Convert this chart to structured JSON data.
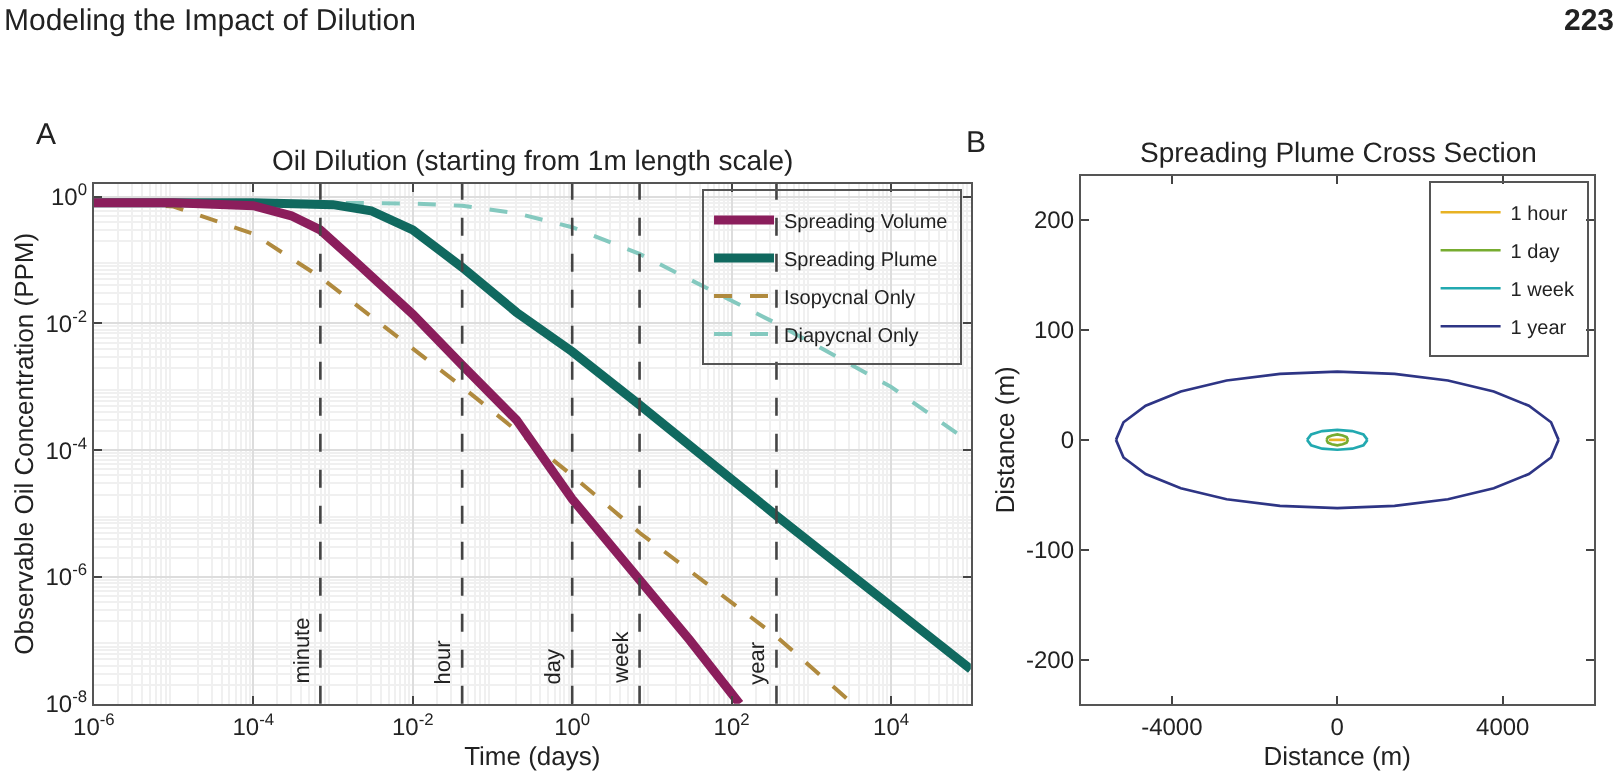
{
  "chart_data": [
    {
      "type": "line",
      "title": "Oil Dilution (starting from 1m length scale)",
      "xlabel": "Time (days)",
      "ylabel": "Observable Oil Concentration (PPM)",
      "annotations": [
        "Modeling the Impact of Dilution",
        "223",
        "A"
      ],
      "log": "xy",
      "grid": true,
      "legend": "top right",
      "xlim": [
        1e-06,
        100000.0
      ],
      "ylim": [
        1e-08,
        1.6
      ],
      "xticks": [
        {
          "value": 1e-06,
          "label": "10$^{-6}$"
        },
        {
          "value": 0.0001,
          "label": "10$^{-4}$"
        },
        {
          "value": 0.01,
          "label": "10$^{-2}$"
        },
        {
          "value": 1,
          "label": "10$^{0}$"
        },
        {
          "value": 100,
          "label": "10$^{2}$"
        },
        {
          "value": 10000.0,
          "label": "10$^{4}$"
        }
      ],
      "yticks": [
        {
          "value": 1e-08,
          "label": "10$^{-8}$"
        },
        {
          "value": 1e-06,
          "label": "10$^{-6}$"
        },
        {
          "value": 0.0001,
          "label": "10$^{-4}$"
        },
        {
          "value": 0.01,
          "label": "10$^{-2}$"
        },
        {
          "value": 1,
          "label": "10$^{0}$"
        }
      ],
      "series": [
        {
          "name": "Spreading Volume",
          "color": "#8b1e5c",
          "line_style": "solid",
          "x": [
            1e-06,
            1e-05,
            0.0001,
            0.0003,
            0.00069,
            0.002,
            0.01,
            0.0417,
            0.2,
            1,
            7,
            30,
            126
          ],
          "values": [
            0.8,
            0.8,
            0.72,
            0.5,
            0.3,
            0.09,
            0.014,
            0.0022,
            0.0003,
            1.7e-05,
            9e-07,
            1e-07,
            1e-08
          ]
        },
        {
          "name": "Spreading Plume",
          "color": "#10695f",
          "line_style": "solid",
          "x": [
            1e-06,
            0.0001,
            0.001,
            0.003,
            0.01,
            0.0417,
            0.2,
            1,
            7,
            365,
            100000.0
          ],
          "values": [
            0.8,
            0.8,
            0.75,
            0.6,
            0.3,
            0.077,
            0.015,
            0.0036,
            0.00052,
            9.3e-06,
            3.5e-08
          ]
        },
        {
          "name": "Isopycnal Only",
          "color": "#b08a3e",
          "line_style": "dashed",
          "x": [
            1e-06,
            3e-06,
            1e-05,
            0.0001,
            0.00069,
            0.0417,
            1,
            7,
            365,
            3300
          ],
          "values": [
            0.8,
            0.78,
            0.7,
            0.26,
            0.054,
            0.001,
            4e-05,
            5e-06,
            1.15e-07,
            1e-08
          ]
        },
        {
          "name": "Diapycnal Only",
          "color": "#84c9bf",
          "line_style": "dashed",
          "x": [
            1e-06,
            0.001,
            0.01,
            0.0417,
            0.2,
            1,
            7,
            365,
            10000.0,
            100000.0
          ],
          "values": [
            0.8,
            0.8,
            0.78,
            0.72,
            0.55,
            0.33,
            0.125,
            0.01,
            0.001,
            0.00013
          ]
        }
      ],
      "ref_lines": [
        {
          "axis": "x",
          "value": 0.000694,
          "label": "minute",
          "color": "#444444",
          "line_style": "dashed"
        },
        {
          "axis": "x",
          "value": 0.0417,
          "label": "hour",
          "color": "#444444",
          "line_style": "dashed"
        },
        {
          "axis": "x",
          "value": 1,
          "label": "day",
          "color": "#444444",
          "line_style": "dashed"
        },
        {
          "axis": "x",
          "value": 7,
          "label": "week",
          "color": "#444444",
          "line_style": "dashed"
        },
        {
          "axis": "x",
          "value": 365,
          "label": "year",
          "color": "#444444",
          "line_style": "dashed"
        }
      ]
    },
    {
      "type": "line",
      "title": "Spreading Plume Cross Section",
      "xlabel": "Distance (m)",
      "ylabel": "Distance (m)",
      "annotations": [
        "B"
      ],
      "grid": false,
      "legend": "top right",
      "xlim": [
        -6200,
        6200
      ],
      "ylim": [
        -240,
        240
      ],
      "xticks": [
        -4000,
        0,
        4000
      ],
      "yticks": [
        -200,
        -100,
        0,
        100,
        200
      ],
      "series": [
        {
          "name": "1 hour",
          "color": "#e8b223",
          "x": [
            -200,
            200
          ],
          "values": [
            0,
            0
          ]
        },
        {
          "name": "1 day",
          "color": "#77ac30",
          "x": [
            260,
            225,
            130,
            0,
            -130,
            -225,
            -260,
            -225,
            -130,
            0,
            130,
            225,
            260
          ],
          "values": [
            0,
            2.5,
            4,
            5,
            4,
            2.5,
            0,
            -2.5,
            -4,
            -5,
            -4,
            -2.5,
            0
          ]
        },
        {
          "name": "1 week",
          "color": "#22a9b0",
          "x": [
            730,
            632,
            365,
            0,
            -365,
            -632,
            -730,
            -632,
            -365,
            0,
            365,
            632,
            730
          ],
          "values": [
            0,
            5,
            8,
            9,
            8,
            5,
            0,
            -5,
            -8,
            -9,
            -8,
            -5,
            0
          ]
        },
        {
          "name": "1 year",
          "color": "#2e3585",
          "x": [
            5350,
            5168,
            4633,
            3783,
            2675,
            1385,
            0,
            -1385,
            -2675,
            -3783,
            -4633,
            -5168,
            -5350,
            -5168,
            -4633,
            -3783,
            -2675,
            -1385,
            0,
            1385,
            2675,
            3783,
            4633,
            5168,
            5350
          ],
          "values": [
            0,
            16,
            31,
            44,
            54,
            60,
            62,
            60,
            54,
            44,
            31,
            16,
            0,
            -16,
            -31,
            -44,
            -54,
            -60,
            -62,
            -60,
            -54,
            -44,
            -31,
            -16,
            0
          ]
        }
      ]
    }
  ]
}
